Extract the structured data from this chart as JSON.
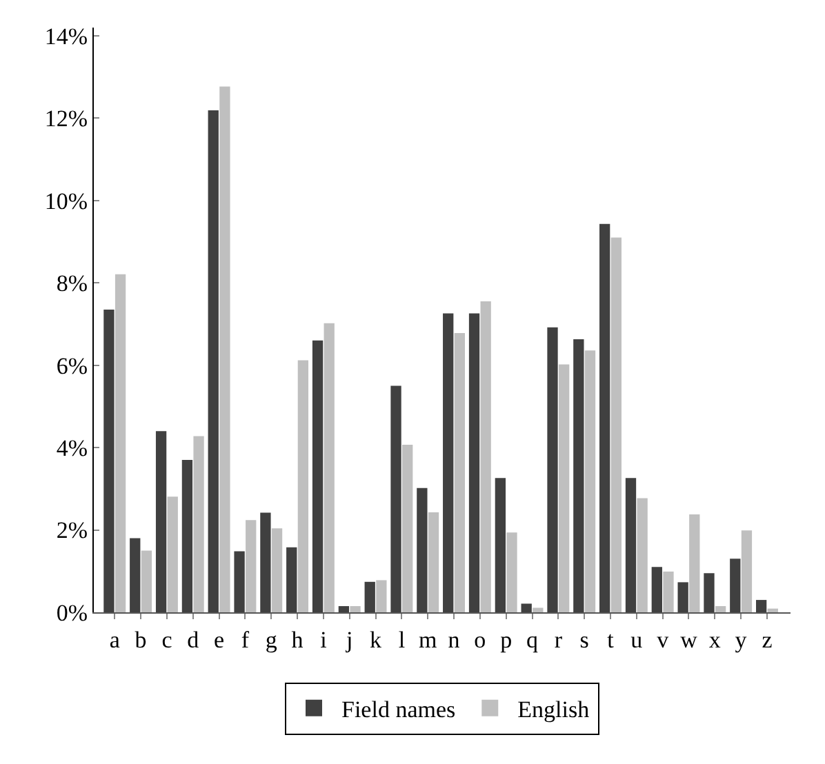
{
  "chart_data": {
    "type": "bar",
    "categories": [
      "a",
      "b",
      "c",
      "d",
      "e",
      "f",
      "g",
      "h",
      "i",
      "j",
      "k",
      "l",
      "m",
      "n",
      "o",
      "p",
      "q",
      "r",
      "s",
      "t",
      "u",
      "v",
      "w",
      "x",
      "y",
      "z"
    ],
    "series": [
      {
        "name": "Field names",
        "color": "#404040",
        "values": [
          7.35,
          1.8,
          4.4,
          3.7,
          12.19,
          1.48,
          2.42,
          1.58,
          6.6,
          0.15,
          0.74,
          5.5,
          3.02,
          7.26,
          7.26,
          3.26,
          0.21,
          6.92,
          6.63,
          9.43,
          3.26,
          1.1,
          0.73,
          0.95,
          1.3,
          0.3
        ]
      },
      {
        "name": "English",
        "color": "#bfbfbf",
        "values": [
          8.21,
          1.5,
          2.81,
          4.28,
          12.77,
          2.24,
          2.04,
          6.12,
          7.02,
          0.15,
          0.78,
          4.07,
          2.43,
          6.78,
          7.55,
          1.94,
          0.11,
          6.02,
          6.36,
          9.1,
          2.77,
          0.99,
          2.38,
          0.15,
          1.99,
          0.09
        ]
      }
    ],
    "ylim": [
      0,
      14.2
    ],
    "yticks": [
      {
        "value": 0,
        "label": "0%"
      },
      {
        "value": 2,
        "label": "2%"
      },
      {
        "value": 4,
        "label": "4%"
      },
      {
        "value": 6,
        "label": "6%"
      },
      {
        "value": 8,
        "label": "8%"
      },
      {
        "value": 10,
        "label": "10%"
      },
      {
        "value": 12,
        "label": "12%"
      },
      {
        "value": 14,
        "label": "14%"
      }
    ],
    "legend": "bottom"
  }
}
